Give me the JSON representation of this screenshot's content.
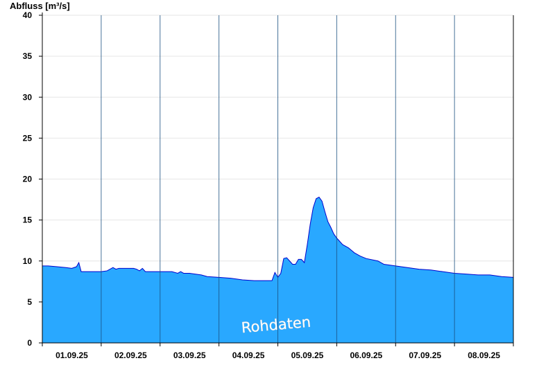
{
  "chart_data": {
    "type": "area",
    "ylabel": "Abfluss [m³/s]",
    "xlabel": "",
    "ylim": [
      0,
      40
    ],
    "yticks": [
      0,
      5,
      10,
      15,
      20,
      25,
      30,
      35,
      40
    ],
    "xlim": [
      0,
      8
    ],
    "day_labels": [
      "01.09.25",
      "02.09.25",
      "03.09.25",
      "04.09.25",
      "05.09.25",
      "06.09.25",
      "07.09.25",
      "08.09.25"
    ],
    "watermark": "Rohdaten",
    "fill_color": "#29a8ff",
    "line_color": "#0000cc",
    "grid": true,
    "series": [
      {
        "x": [
          0.0,
          0.1,
          0.25,
          0.4,
          0.5,
          0.58,
          0.62,
          0.66,
          0.7,
          0.8,
          1.0,
          1.1,
          1.2,
          1.25,
          1.3,
          1.4,
          1.55,
          1.6,
          1.65,
          1.7,
          1.75,
          1.8,
          1.9,
          2.0,
          2.2,
          2.3,
          2.35,
          2.4,
          2.5,
          2.7,
          2.8,
          3.0,
          3.2,
          3.4,
          3.6,
          3.8,
          3.9,
          3.95,
          4.0,
          4.05,
          4.1,
          4.15,
          4.2,
          4.25,
          4.3,
          4.35,
          4.4,
          4.45,
          4.5,
          4.55,
          4.6,
          4.65,
          4.7,
          4.75,
          4.8,
          4.85,
          4.9,
          4.95,
          5.0,
          5.05,
          5.1,
          5.2,
          5.3,
          5.4,
          5.5,
          5.7,
          5.8,
          6.0,
          6.2,
          6.4,
          6.6,
          6.8,
          7.0,
          7.2,
          7.4,
          7.6,
          7.8,
          8.0
        ],
        "values": [
          9.4,
          9.4,
          9.3,
          9.2,
          9.1,
          9.3,
          9.8,
          8.7,
          8.7,
          8.7,
          8.7,
          8.8,
          9.2,
          9.0,
          9.1,
          9.1,
          9.1,
          9.0,
          8.8,
          9.1,
          8.7,
          8.7,
          8.7,
          8.7,
          8.7,
          8.5,
          8.7,
          8.5,
          8.5,
          8.3,
          8.1,
          8.0,
          7.9,
          7.7,
          7.6,
          7.6,
          7.6,
          8.6,
          8.0,
          8.5,
          10.3,
          10.4,
          10.0,
          9.6,
          9.6,
          10.2,
          10.2,
          9.8,
          12.0,
          14.5,
          16.5,
          17.6,
          17.8,
          17.3,
          16.0,
          14.8,
          14.1,
          13.3,
          12.8,
          12.4,
          12.0,
          11.6,
          11.0,
          10.6,
          10.3,
          10.0,
          9.6,
          9.4,
          9.2,
          9.0,
          8.9,
          8.7,
          8.5,
          8.4,
          8.3,
          8.3,
          8.1,
          8.0
        ]
      }
    ]
  }
}
